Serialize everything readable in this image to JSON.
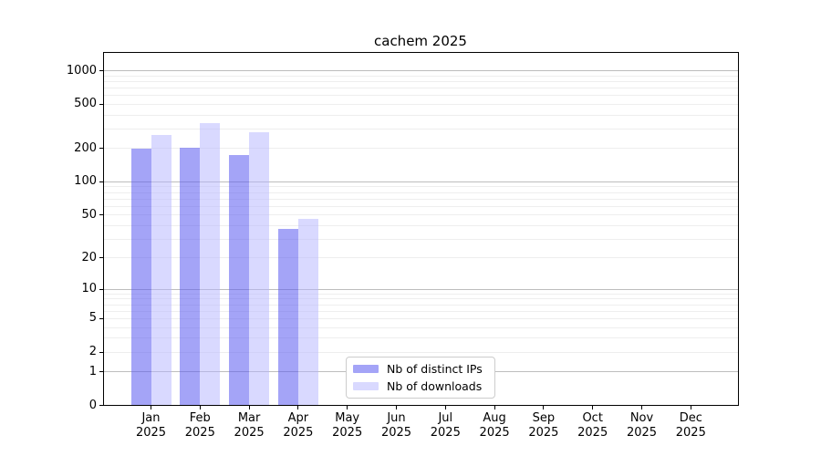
{
  "chart_data": {
    "type": "bar",
    "title": "cachem 2025",
    "y_scale": "log10(value+1)",
    "ylim": [
      0,
      1460
    ],
    "y_ticks": [
      1000,
      500,
      200,
      100,
      50,
      20,
      10,
      5,
      2,
      1,
      0
    ],
    "grid": {
      "major_at": [
        1,
        10,
        100,
        1000
      ],
      "minor_per_decade": [
        2,
        3,
        4,
        5,
        6,
        7,
        8,
        9
      ],
      "minor_decades": [
        1,
        10,
        100
      ]
    },
    "legend_position": "inside-bottom-center",
    "x_categories": [
      {
        "month": "Jan",
        "year": "2025"
      },
      {
        "month": "Feb",
        "year": "2025"
      },
      {
        "month": "Mar",
        "year": "2025"
      },
      {
        "month": "Apr",
        "year": "2025"
      },
      {
        "month": "May",
        "year": "2025"
      },
      {
        "month": "Jun",
        "year": "2025"
      },
      {
        "month": "Jul",
        "year": "2025"
      },
      {
        "month": "Aug",
        "year": "2025"
      },
      {
        "month": "Sep",
        "year": "2025"
      },
      {
        "month": "Oct",
        "year": "2025"
      },
      {
        "month": "Nov",
        "year": "2025"
      },
      {
        "month": "Dec",
        "year": "2025"
      }
    ],
    "series": [
      {
        "name": "Nb of distinct IPs",
        "color": "#5a5af0",
        "opacity": 0.55,
        "rendered_color": "#a4a4f6",
        "values": [
          200,
          205,
          175,
          37,
          null,
          null,
          null,
          null,
          null,
          null,
          null,
          null
        ]
      },
      {
        "name": "Nb of downloads",
        "color": "#b4b4ff",
        "opacity": 0.5,
        "rendered_color": "#d9d9ff",
        "values": [
          265,
          340,
          278,
          46,
          null,
          null,
          null,
          null,
          null,
          null,
          null,
          null
        ]
      }
    ]
  }
}
